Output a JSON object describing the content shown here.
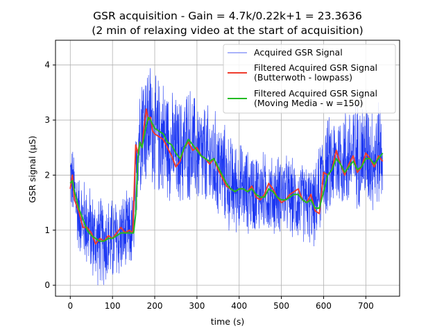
{
  "chart_data": {
    "type": "line",
    "title": "GSR acquisition - Gain = 4.7k/0.22k+1 = 23.3636",
    "subtitle": "(2 min of relaxing video at the start of acquisition)",
    "xlabel": "time (s)",
    "ylabel": "GSR signal (µS)",
    "xlim": [
      -35,
      780
    ],
    "ylim": [
      -0.2,
      4.45
    ],
    "xticks": [
      0,
      100,
      200,
      300,
      400,
      500,
      600,
      700
    ],
    "xtick_labels": [
      "0",
      "100",
      "200",
      "300",
      "400",
      "500",
      "600",
      "700"
    ],
    "yticks": [
      0,
      1,
      2,
      3,
      4
    ],
    "ytick_labels": [
      "0",
      "1",
      "2",
      "3",
      "4"
    ],
    "grid": true,
    "legend_position": "top-right",
    "series": [
      {
        "name": "Acquired GSR Signal",
        "color": "#1a35f2",
        "style": "noisy-band",
        "x": [
          0,
          10,
          20,
          40,
          60,
          80,
          100,
          120,
          140,
          150,
          160,
          170,
          180,
          190,
          200,
          220,
          240,
          260,
          280,
          300,
          320,
          340,
          360,
          380,
          400,
          420,
          440,
          460,
          480,
          500,
          520,
          540,
          560,
          580,
          600,
          620,
          640,
          660,
          680,
          700,
          720,
          740
        ],
        "center": [
          2.0,
          1.7,
          1.3,
          1.1,
          0.8,
          0.8,
          0.8,
          0.9,
          0.95,
          1.0,
          2.6,
          3.0,
          2.9,
          3.0,
          2.7,
          2.7,
          2.5,
          2.4,
          2.6,
          2.4,
          2.3,
          2.2,
          2.1,
          1.8,
          1.8,
          1.7,
          1.7,
          1.7,
          1.6,
          1.7,
          1.6,
          1.5,
          1.5,
          1.4,
          2.1,
          2.2,
          2.3,
          2.3,
          2.4,
          2.4,
          2.3,
          2.5
        ],
        "spread": [
          0.7,
          0.8,
          0.8,
          0.9,
          0.9,
          0.9,
          0.9,
          0.85,
          0.8,
          0.8,
          1.2,
          1.3,
          1.3,
          1.2,
          1.2,
          1.2,
          1.1,
          1.1,
          1.2,
          1.1,
          1.1,
          1.1,
          1.0,
          1.0,
          0.9,
          0.85,
          0.85,
          0.8,
          0.8,
          0.8,
          0.8,
          0.8,
          0.8,
          0.8,
          1.0,
          1.0,
          1.0,
          1.1,
          1.1,
          1.1,
          1.1,
          1.1
        ]
      },
      {
        "name": "Filtered Acquired GSR Signal\n(Butterwoth - lowpass)",
        "color": "#ef3b2c",
        "x": [
          0,
          5,
          10,
          20,
          30,
          40,
          50,
          60,
          70,
          80,
          90,
          100,
          110,
          120,
          130,
          140,
          148,
          155,
          160,
          165,
          170,
          175,
          180,
          185,
          190,
          195,
          200,
          210,
          220,
          230,
          240,
          250,
          260,
          270,
          280,
          290,
          300,
          310,
          320,
          330,
          340,
          350,
          360,
          370,
          380,
          390,
          400,
          410,
          420,
          430,
          440,
          450,
          460,
          470,
          480,
          490,
          500,
          510,
          520,
          530,
          540,
          550,
          560,
          570,
          580,
          590,
          600,
          610,
          620,
          630,
          640,
          650,
          660,
          670,
          680,
          690,
          700,
          710,
          720,
          730,
          740
        ],
        "y": [
          1.75,
          2.0,
          1.55,
          1.35,
          1.05,
          1.05,
          0.95,
          0.75,
          0.85,
          0.8,
          0.9,
          0.85,
          0.95,
          1.05,
          0.95,
          1.0,
          0.95,
          2.55,
          2.4,
          2.6,
          2.5,
          2.9,
          3.2,
          3.0,
          3.05,
          2.8,
          2.75,
          2.7,
          2.65,
          2.5,
          2.35,
          2.15,
          2.25,
          2.5,
          2.6,
          2.45,
          2.5,
          2.35,
          2.3,
          2.2,
          2.3,
          2.1,
          1.95,
          1.8,
          1.75,
          1.7,
          1.75,
          1.75,
          1.7,
          1.8,
          1.6,
          1.55,
          1.65,
          1.85,
          1.75,
          1.6,
          1.5,
          1.55,
          1.65,
          1.7,
          1.75,
          1.55,
          1.5,
          1.65,
          1.35,
          1.3,
          2.05,
          2.0,
          2.1,
          2.45,
          2.2,
          2.0,
          2.2,
          2.35,
          2.05,
          2.15,
          2.4,
          2.3,
          2.15,
          2.35,
          2.25
        ]
      },
      {
        "name": "Filtered Acquired GSR Signal\n(Moving Media - w =150)",
        "color": "#22bb22",
        "x": [
          0,
          5,
          10,
          20,
          30,
          40,
          50,
          60,
          70,
          80,
          90,
          100,
          110,
          120,
          130,
          140,
          150,
          155,
          160,
          165,
          170,
          175,
          180,
          185,
          190,
          200,
          210,
          220,
          230,
          240,
          250,
          260,
          270,
          280,
          290,
          300,
          310,
          320,
          330,
          340,
          350,
          360,
          370,
          380,
          390,
          400,
          410,
          420,
          430,
          440,
          450,
          460,
          470,
          480,
          490,
          500,
          510,
          520,
          530,
          540,
          550,
          560,
          570,
          580,
          590,
          600,
          610,
          620,
          630,
          640,
          650,
          660,
          670,
          680,
          690,
          700,
          710,
          720,
          730,
          740
        ],
        "y": [
          1.85,
          1.9,
          1.7,
          1.4,
          1.2,
          1.0,
          0.9,
          0.85,
          0.8,
          0.8,
          0.85,
          0.85,
          0.9,
          0.95,
          0.95,
          0.95,
          0.95,
          1.3,
          2.3,
          2.6,
          2.5,
          2.7,
          2.9,
          3.05,
          3.0,
          2.85,
          2.8,
          2.75,
          2.6,
          2.55,
          2.4,
          2.3,
          2.5,
          2.65,
          2.55,
          2.45,
          2.35,
          2.3,
          2.25,
          2.3,
          2.15,
          2.0,
          1.85,
          1.75,
          1.7,
          1.75,
          1.75,
          1.7,
          1.75,
          1.65,
          1.6,
          1.6,
          1.75,
          1.7,
          1.6,
          1.55,
          1.55,
          1.6,
          1.65,
          1.65,
          1.55,
          1.5,
          1.55,
          1.4,
          1.4,
          1.7,
          2.0,
          2.1,
          2.3,
          2.2,
          2.05,
          2.15,
          2.25,
          2.1,
          2.15,
          2.3,
          2.3,
          2.2,
          2.3,
          2.4
        ]
      }
    ]
  }
}
